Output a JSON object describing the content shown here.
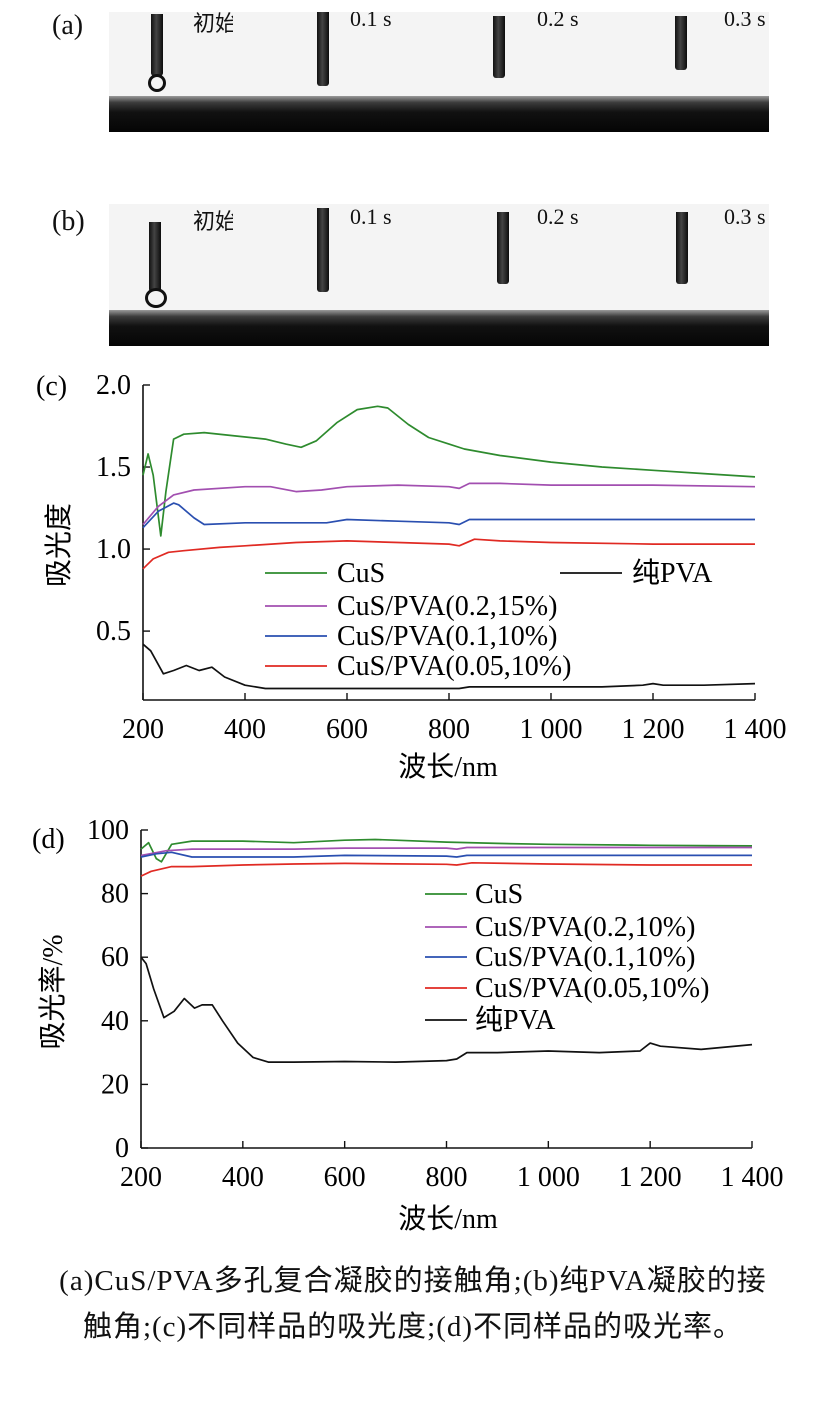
{
  "photos": [
    {
      "letter": "(a)",
      "frames": [
        "初始时刻",
        "0.1 s",
        "0.2 s",
        "0.3 s"
      ]
    },
    {
      "letter": "(b)",
      "frames": [
        "初始时刻",
        "0.1 s",
        "0.2 s",
        "0.3 s"
      ]
    }
  ],
  "caption": {
    "line1": "(a)CuS/PVA多孔复合凝胶的接触角;(b)纯PVA凝胶的接",
    "line2": "触角;(c)不同样品的吸光度;(d)不同样品的吸光率。"
  },
  "chart_data": [
    {
      "panel": "(c)",
      "type": "line",
      "xlabel": "波长/nm",
      "ylabel": "吸光度",
      "xlim": [
        200,
        1400
      ],
      "ylim": [
        0.08,
        2.0
      ],
      "xticks": [
        200,
        400,
        600,
        800,
        1000,
        1200,
        1400
      ],
      "xtick_labels": [
        "200",
        "400",
        "600",
        "800",
        "1 000",
        "1 200",
        "1 400"
      ],
      "yticks": [
        0.5,
        1.0,
        1.5,
        2.0
      ],
      "ytick_labels": [
        "0.5",
        "1.0",
        "1.5",
        "2.0"
      ],
      "legend": {
        "placement": "lower-center",
        "columns": 2
      },
      "series": [
        {
          "name": "CuS",
          "color": "#2e8b2e",
          "x": [
            200,
            210,
            220,
            235,
            245,
            260,
            280,
            320,
            380,
            440,
            480,
            510,
            540,
            580,
            620,
            660,
            680,
            720,
            760,
            800,
            830,
            900,
            1000,
            1100,
            1200,
            1300,
            1400
          ],
          "y": [
            1.45,
            1.58,
            1.45,
            1.08,
            1.35,
            1.67,
            1.7,
            1.71,
            1.69,
            1.67,
            1.64,
            1.62,
            1.66,
            1.77,
            1.85,
            1.87,
            1.86,
            1.76,
            1.68,
            1.64,
            1.61,
            1.57,
            1.53,
            1.5,
            1.48,
            1.46,
            1.44
          ]
        },
        {
          "name": "CuS/PVA(0.2,15%)",
          "color": "#a24fb0",
          "x": [
            200,
            230,
            260,
            300,
            400,
            450,
            500,
            550,
            600,
            700,
            800,
            820,
            840,
            900,
            1000,
            1200,
            1400
          ],
          "y": [
            1.15,
            1.26,
            1.33,
            1.36,
            1.38,
            1.38,
            1.35,
            1.36,
            1.38,
            1.39,
            1.38,
            1.37,
            1.4,
            1.4,
            1.39,
            1.39,
            1.38
          ]
        },
        {
          "name": "CuS/PVA(0.1,10%)",
          "color": "#2a4fb0",
          "x": [
            200,
            230,
            260,
            270,
            300,
            320,
            400,
            500,
            560,
            600,
            700,
            800,
            820,
            840,
            1000,
            1200,
            1400
          ],
          "y": [
            1.13,
            1.23,
            1.28,
            1.27,
            1.19,
            1.15,
            1.16,
            1.16,
            1.16,
            1.18,
            1.17,
            1.16,
            1.15,
            1.18,
            1.18,
            1.18,
            1.18
          ]
        },
        {
          "name": "CuS/PVA(0.05,10%)",
          "color": "#e02a23",
          "x": [
            200,
            220,
            250,
            280,
            350,
            400,
            500,
            600,
            700,
            800,
            820,
            850,
            900,
            1000,
            1200,
            1400
          ],
          "y": [
            0.88,
            0.94,
            0.98,
            0.99,
            1.01,
            1.02,
            1.04,
            1.05,
            1.04,
            1.03,
            1.02,
            1.06,
            1.05,
            1.04,
            1.03,
            1.03
          ]
        },
        {
          "name": "纯PVA",
          "color": "#111111",
          "x": [
            200,
            215,
            240,
            260,
            285,
            310,
            335,
            360,
            400,
            440,
            500,
            600,
            700,
            800,
            820,
            840,
            900,
            1000,
            1100,
            1180,
            1200,
            1220,
            1300,
            1400
          ],
          "y": [
            0.42,
            0.38,
            0.24,
            0.26,
            0.29,
            0.26,
            0.28,
            0.22,
            0.17,
            0.15,
            0.15,
            0.15,
            0.15,
            0.15,
            0.15,
            0.16,
            0.16,
            0.16,
            0.16,
            0.17,
            0.18,
            0.17,
            0.17,
            0.18
          ]
        }
      ]
    },
    {
      "panel": "(d)",
      "type": "line",
      "xlabel": "波长/nm",
      "ylabel": "吸光率/%",
      "xlim": [
        200,
        1400
      ],
      "ylim": [
        0,
        100
      ],
      "xticks": [
        200,
        400,
        600,
        800,
        1000,
        1200,
        1400
      ],
      "xtick_labels": [
        "200",
        "400",
        "600",
        "800",
        "1 000",
        "1 200",
        "1 400"
      ],
      "yticks": [
        0,
        20,
        40,
        60,
        80,
        100
      ],
      "ytick_labels": [
        "0",
        "20",
        "40",
        "60",
        "80",
        "100"
      ],
      "legend": {
        "placement": "right-center",
        "columns": 1
      },
      "series": [
        {
          "name": "CuS",
          "color": "#2e8b2e",
          "x": [
            200,
            215,
            230,
            240,
            260,
            300,
            400,
            500,
            600,
            660,
            700,
            800,
            900,
            1000,
            1200,
            1400
          ],
          "y": [
            94,
            96,
            91,
            90,
            95.5,
            96.5,
            96.5,
            96,
            96.8,
            97,
            96.8,
            96.2,
            95.8,
            95.5,
            95.2,
            95
          ]
        },
        {
          "name": "CuS/PVA(0.2,10%)",
          "color": "#a24fb0",
          "x": [
            200,
            250,
            300,
            400,
            500,
            600,
            800,
            820,
            840,
            1000,
            1200,
            1400
          ],
          "y": [
            92,
            93.5,
            94,
            94,
            94,
            94.3,
            94.3,
            94,
            94.5,
            94.5,
            94.5,
            94.5
          ]
        },
        {
          "name": "CuS/PVA(0.1,10%)",
          "color": "#2a4fb0",
          "x": [
            200,
            230,
            260,
            300,
            400,
            500,
            600,
            800,
            820,
            840,
            1000,
            1200,
            1400
          ],
          "y": [
            91.5,
            92.5,
            93,
            91.5,
            91.5,
            91.5,
            92,
            91.8,
            91.5,
            92,
            92,
            92,
            92
          ]
        },
        {
          "name": "CuS/PVA(0.05,10%)",
          "color": "#e02a23",
          "x": [
            200,
            220,
            260,
            300,
            400,
            500,
            600,
            800,
            820,
            850,
            1000,
            1200,
            1400
          ],
          "y": [
            85.5,
            87,
            88.5,
            88.5,
            89,
            89.3,
            89.5,
            89.2,
            89,
            89.7,
            89.3,
            89,
            89
          ]
        },
        {
          "name": "纯PVA",
          "color": "#111111",
          "x": [
            200,
            210,
            225,
            245,
            265,
            285,
            305,
            320,
            340,
            360,
            390,
            420,
            450,
            500,
            600,
            700,
            800,
            820,
            840,
            900,
            1000,
            1100,
            1180,
            1200,
            1220,
            1300,
            1400
          ],
          "y": [
            60,
            58,
            50,
            41,
            43,
            47,
            44,
            45,
            45,
            40,
            33,
            28.5,
            27,
            27,
            27.2,
            27,
            27.5,
            28,
            30,
            30,
            30.5,
            30,
            30.5,
            33,
            32,
            31,
            32.5
          ]
        }
      ]
    }
  ]
}
